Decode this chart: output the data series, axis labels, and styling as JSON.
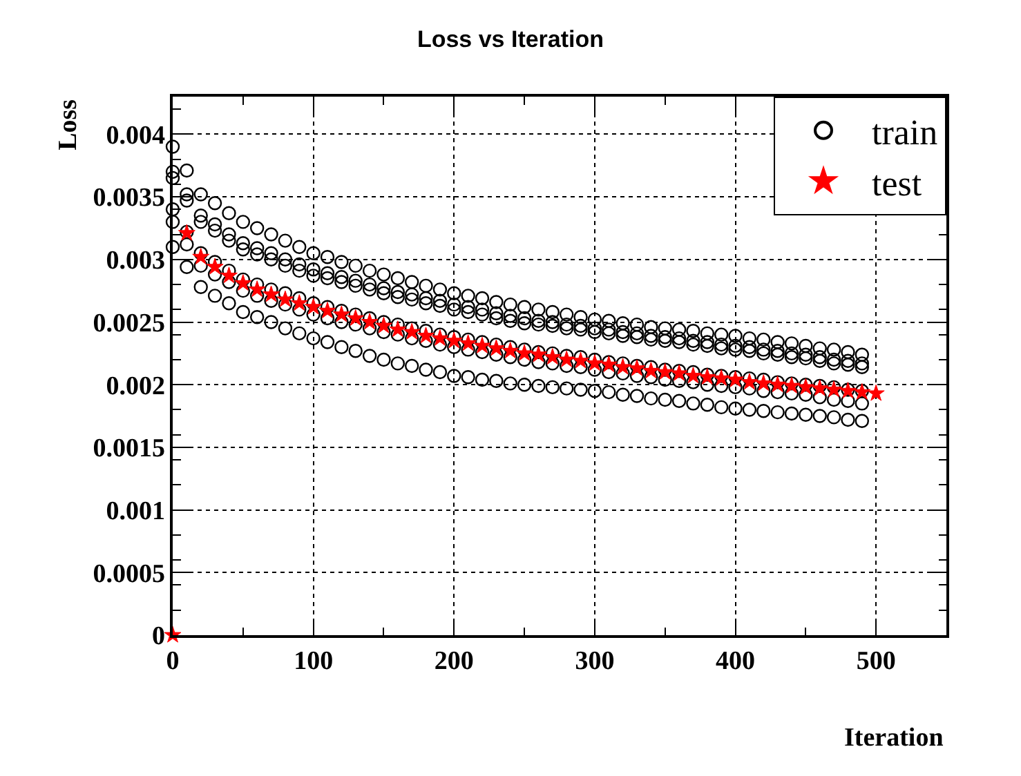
{
  "chart_data": {
    "type": "scatter",
    "title": "Loss vs Iteration",
    "xlabel": "Iteration",
    "ylabel": "Loss",
    "xlim": [
      0,
      550
    ],
    "xticks": [
      0,
      100,
      200,
      300,
      400,
      500
    ],
    "ylim": [
      0,
      0.0043
    ],
    "yticks": [
      0,
      0.0005,
      0.001,
      0.0015,
      0.002,
      0.0025,
      0.003,
      0.0035,
      0.004
    ],
    "grid": true,
    "legend": "top right",
    "series": [
      {
        "name": "train",
        "color": "#000000",
        "marker": "circle",
        "x": [
          0,
          10,
          20,
          30,
          40,
          50,
          60,
          70,
          80,
          90,
          100,
          110,
          120,
          130,
          140,
          150,
          160,
          170,
          180,
          190,
          200,
          210,
          220,
          230,
          240,
          250,
          260,
          270,
          280,
          290,
          300,
          310,
          320,
          330,
          340,
          350,
          360,
          370,
          380,
          390,
          400,
          410,
          420,
          430,
          440,
          450,
          460,
          470,
          480,
          490,
          0,
          10,
          20,
          30,
          40,
          50,
          60,
          70,
          80,
          90,
          100,
          110,
          120,
          130,
          140,
          150,
          160,
          170,
          180,
          190,
          200,
          210,
          220,
          230,
          240,
          250,
          260,
          270,
          280,
          290,
          300,
          310,
          320,
          330,
          340,
          350,
          360,
          370,
          380,
          390,
          400,
          410,
          420,
          430,
          440,
          450,
          460,
          470,
          480,
          490,
          0,
          10,
          20,
          30,
          40,
          50,
          60,
          70,
          80,
          90,
          100,
          110,
          120,
          130,
          140,
          150,
          160,
          170,
          180,
          190,
          200,
          210,
          220,
          230,
          240,
          250,
          260,
          270,
          280,
          290,
          300,
          310,
          320,
          330,
          340,
          350,
          360,
          370,
          380,
          390,
          400,
          410,
          420,
          430,
          440,
          450,
          460,
          470,
          480,
          490,
          0,
          10,
          20,
          30,
          40,
          50,
          60,
          70,
          80,
          90,
          100,
          110,
          120,
          130,
          140,
          150,
          160,
          170,
          180,
          190,
          200,
          210,
          220,
          230,
          240,
          250,
          260,
          270,
          280,
          290,
          300,
          310,
          320,
          330,
          340,
          350,
          360,
          370,
          380,
          390,
          400,
          410,
          420,
          430,
          440,
          450,
          460,
          470,
          480,
          490,
          0,
          10,
          20,
          30,
          40,
          50,
          60,
          70,
          80,
          90,
          100,
          110,
          120,
          130,
          140,
          150,
          160,
          170,
          180,
          190,
          200,
          210,
          220,
          230,
          240,
          250,
          260,
          270,
          280,
          290,
          300,
          310,
          320,
          330,
          340,
          350,
          360,
          370,
          380,
          390,
          400,
          410,
          420,
          430,
          440,
          450,
          460,
          470,
          480,
          490,
          0,
          10,
          20,
          30,
          40,
          50,
          60,
          70,
          80,
          90,
          100,
          110,
          120,
          130,
          140,
          150,
          160,
          170,
          180,
          190,
          200,
          210,
          220,
          230,
          240,
          250,
          260,
          270,
          280,
          290,
          300,
          310,
          320,
          330,
          340,
          350,
          360,
          370,
          380,
          390,
          400,
          410,
          420,
          430,
          440,
          450,
          460,
          470,
          480,
          490
        ],
        "values": [
          0.0039,
          0.00371,
          0.00352,
          0.00345,
          0.00337,
          0.0033,
          0.00325,
          0.0032,
          0.00315,
          0.0031,
          0.00305,
          0.00302,
          0.00298,
          0.00295,
          0.00291,
          0.00288,
          0.00285,
          0.00282,
          0.00279,
          0.00276,
          0.00273,
          0.00271,
          0.00269,
          0.00266,
          0.00264,
          0.00262,
          0.0026,
          0.00258,
          0.00256,
          0.00254,
          0.00252,
          0.00251,
          0.00249,
          0.00248,
          0.00246,
          0.00245,
          0.00244,
          0.00243,
          0.00241,
          0.0024,
          0.00239,
          0.00237,
          0.00236,
          0.00234,
          0.00233,
          0.00231,
          0.00229,
          0.00228,
          0.00226,
          0.00224,
          0.0037,
          0.00352,
          0.00335,
          0.00328,
          0.0032,
          0.00313,
          0.00309,
          0.00305,
          0.003,
          0.00296,
          0.00292,
          0.00289,
          0.00286,
          0.00283,
          0.0028,
          0.00277,
          0.00274,
          0.00272,
          0.00269,
          0.00267,
          0.00264,
          0.00262,
          0.0026,
          0.00257,
          0.00255,
          0.00253,
          0.00251,
          0.0025,
          0.00248,
          0.00247,
          0.00245,
          0.00244,
          0.00242,
          0.00241,
          0.00239,
          0.00238,
          0.00237,
          0.00235,
          0.00234,
          0.00232,
          0.00231,
          0.0023,
          0.00228,
          0.00227,
          0.00225,
          0.00224,
          0.00222,
          0.0022,
          0.00219,
          0.00217,
          0.00365,
          0.00347,
          0.0033,
          0.00323,
          0.00315,
          0.00308,
          0.00304,
          0.003,
          0.00295,
          0.00291,
          0.00287,
          0.00285,
          0.00282,
          0.00279,
          0.00276,
          0.00273,
          0.0027,
          0.00268,
          0.00265,
          0.00263,
          0.0026,
          0.00258,
          0.00256,
          0.00253,
          0.00251,
          0.00249,
          0.00248,
          0.00247,
          0.00245,
          0.00244,
          0.00242,
          0.00241,
          0.00239,
          0.00238,
          0.00236,
          0.00235,
          0.00234,
          0.00232,
          0.00231,
          0.00229,
          0.00228,
          0.00227,
          0.00225,
          0.00224,
          0.00222,
          0.00221,
          0.00219,
          0.00217,
          0.00216,
          0.00214,
          0.0034,
          0.00322,
          0.00305,
          0.00298,
          0.00291,
          0.00284,
          0.0028,
          0.00276,
          0.00273,
          0.00269,
          0.00265,
          0.00262,
          0.00259,
          0.00256,
          0.00253,
          0.0025,
          0.00248,
          0.00245,
          0.00243,
          0.0024,
          0.00238,
          0.00236,
          0.00234,
          0.00232,
          0.0023,
          0.00228,
          0.00226,
          0.00225,
          0.00223,
          0.00222,
          0.0022,
          0.00218,
          0.00217,
          0.00215,
          0.00214,
          0.00212,
          0.00211,
          0.0021,
          0.00208,
          0.00207,
          0.00206,
          0.00205,
          0.00204,
          0.00202,
          0.00201,
          0.002,
          0.00199,
          0.00198,
          0.00196,
          0.00195,
          0.0033,
          0.00312,
          0.00295,
          0.00288,
          0.00282,
          0.00275,
          0.00271,
          0.00267,
          0.00264,
          0.0026,
          0.00256,
          0.00253,
          0.0025,
          0.00248,
          0.00245,
          0.00242,
          0.0024,
          0.00237,
          0.00235,
          0.00232,
          0.0023,
          0.00228,
          0.00226,
          0.00224,
          0.00222,
          0.0022,
          0.00218,
          0.00217,
          0.00215,
          0.00214,
          0.00212,
          0.0021,
          0.00209,
          0.00207,
          0.00206,
          0.00204,
          0.00203,
          0.00202,
          0.002,
          0.00199,
          0.00198,
          0.00197,
          0.00195,
          0.00194,
          0.00193,
          0.00192,
          0.0019,
          0.00188,
          0.00187,
          0.00185,
          0.0031,
          0.00294,
          0.00278,
          0.00271,
          0.00265,
          0.00258,
          0.00254,
          0.0025,
          0.00245,
          0.00241,
          0.00237,
          0.00234,
          0.0023,
          0.00227,
          0.00223,
          0.0022,
          0.00217,
          0.00215,
          0.00212,
          0.0021,
          0.00207,
          0.00206,
          0.00204,
          0.00203,
          0.00201,
          0.002,
          0.00199,
          0.00198,
          0.00197,
          0.00196,
          0.00195,
          0.00194,
          0.00192,
          0.00191,
          0.00189,
          0.00188,
          0.00187,
          0.00185,
          0.00184,
          0.00182,
          0.00181,
          0.0018,
          0.00179,
          0.00178,
          0.00177,
          0.00176,
          0.00175,
          0.00174,
          0.00172,
          0.00171
        ]
      },
      {
        "name": "test",
        "color": "#ff0000",
        "marker": "star",
        "x": [
          0,
          10,
          20,
          30,
          40,
          50,
          60,
          70,
          80,
          90,
          100,
          110,
          120,
          130,
          140,
          150,
          160,
          170,
          180,
          190,
          200,
          210,
          220,
          230,
          240,
          250,
          260,
          270,
          280,
          290,
          300,
          310,
          320,
          330,
          340,
          350,
          360,
          370,
          380,
          390,
          400,
          410,
          420,
          430,
          440,
          450,
          460,
          470,
          480,
          490,
          500
        ],
        "values": [
          0,
          0.00321,
          0.00302,
          0.00294,
          0.00287,
          0.00281,
          0.00276,
          0.00272,
          0.00268,
          0.00265,
          0.00262,
          0.00259,
          0.00256,
          0.00253,
          0.0025,
          0.00247,
          0.00244,
          0.00242,
          0.00239,
          0.00237,
          0.00235,
          0.00233,
          0.00231,
          0.00229,
          0.00227,
          0.00225,
          0.00224,
          0.00222,
          0.0022,
          0.00219,
          0.00217,
          0.00216,
          0.00214,
          0.00213,
          0.00211,
          0.0021,
          0.00209,
          0.00207,
          0.00206,
          0.00205,
          0.00204,
          0.00202,
          0.00201,
          0.002,
          0.00199,
          0.00198,
          0.00197,
          0.00196,
          0.00195,
          0.00194,
          0.00193
        ]
      }
    ]
  }
}
